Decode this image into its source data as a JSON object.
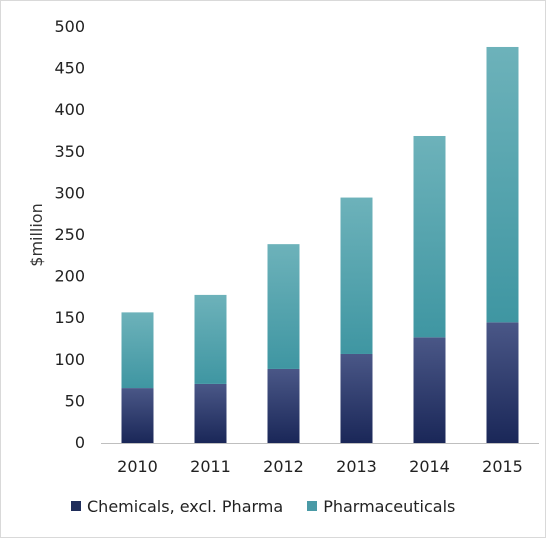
{
  "chart_data": {
    "type": "bar",
    "stacked": true,
    "categories": [
      "2010",
      "2011",
      "2012",
      "2013",
      "2014",
      "2015"
    ],
    "series": [
      {
        "name": "Chemicals, excl. Pharma",
        "values": [
          66,
          71,
          89,
          107,
          127,
          145
        ],
        "color": "#1f2d5a"
      },
      {
        "name": "Pharmaceuticals",
        "values": [
          91,
          107,
          150,
          188,
          242,
          331
        ],
        "color": "#4a9aa6"
      }
    ],
    "xlabel": "",
    "ylabel": "$million",
    "ylim": [
      0,
      500
    ],
    "yticks": [
      0,
      50,
      100,
      150,
      200,
      250,
      300,
      350,
      400,
      450,
      500
    ],
    "grid": false,
    "legend": "bottom"
  }
}
